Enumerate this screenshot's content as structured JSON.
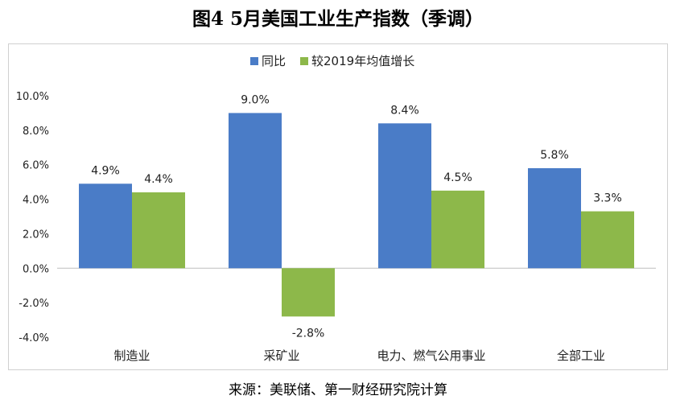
{
  "title": "图4 5月美国工业生产指数（季调）",
  "source": "来源：美联储、第一财经研究院计算",
  "chart_data": {
    "type": "bar",
    "categories": [
      "制造业",
      "采矿业",
      "电力、燃气公用事业",
      "全部工业"
    ],
    "series": [
      {
        "name": "同比",
        "values": [
          4.9,
          9.0,
          8.4,
          5.8
        ],
        "labels": [
          "4.9%",
          "9.0%",
          "8.4%",
          "5.8%"
        ],
        "color": "#4a7cc7"
      },
      {
        "name": "较2019年均值增长",
        "values": [
          4.4,
          -2.8,
          4.5,
          3.3
        ],
        "labels": [
          "4.4%",
          "-2.8%",
          "4.5%",
          "3.3%"
        ],
        "color": "#8db84a"
      }
    ],
    "yticks": [
      "10.0%",
      "8.0%",
      "6.0%",
      "4.0%",
      "2.0%",
      "0.0%",
      "-2.0%",
      "-4.0%"
    ],
    "ylim": [
      -4,
      10
    ],
    "legend": "top-center",
    "grid": false
  }
}
